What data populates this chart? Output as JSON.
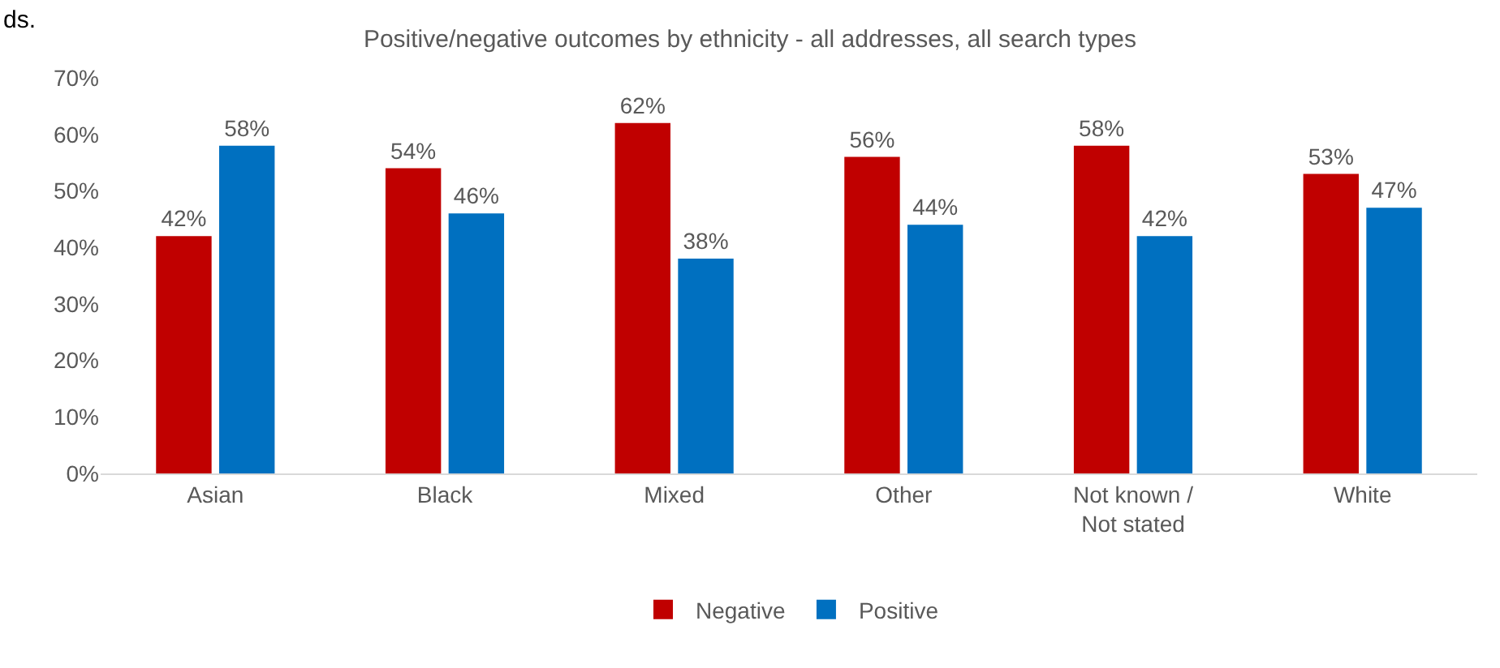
{
  "chart_data": {
    "type": "bar",
    "title": "Positive/negative outcomes by ethnicity - all addresses, all search types",
    "annotations": [
      "ds."
    ],
    "categories": [
      "Asian",
      "Black",
      "Mixed",
      "Other",
      "Not known / Not stated",
      "White"
    ],
    "series": [
      {
        "name": "Negative",
        "color": "#c00000",
        "values": [
          42,
          54,
          62,
          56,
          58,
          53
        ],
        "value_labels": [
          "42%",
          "54%",
          "62%",
          "56%",
          "58%",
          "53%"
        ]
      },
      {
        "name": "Positive",
        "color": "#0070c0",
        "values": [
          58,
          46,
          38,
          44,
          42,
          47
        ],
        "value_labels": [
          "58%",
          "46%",
          "38%",
          "44%",
          "42%",
          "47%"
        ]
      }
    ],
    "ylim": [
      0,
      70
    ],
    "yticks": [
      {
        "value": 0,
        "label": "0%"
      },
      {
        "value": 10,
        "label": "10%"
      },
      {
        "value": 20,
        "label": "20%"
      },
      {
        "value": 30,
        "label": "30%"
      },
      {
        "value": 40,
        "label": "40%"
      },
      {
        "value": 50,
        "label": "50%"
      },
      {
        "value": 60,
        "label": "60%"
      },
      {
        "value": 70,
        "label": "70%"
      }
    ],
    "grid": false,
    "legend": "bottom"
  }
}
